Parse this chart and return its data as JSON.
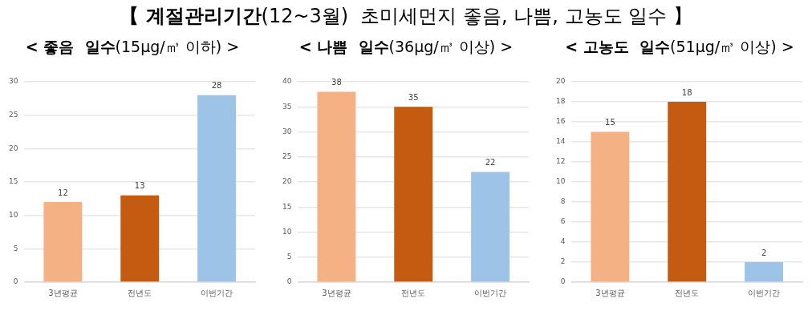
{
  "chart_data": [
    {
      "type": "other",
      "title": "【 계절관리기간(12~3월)  초미세먼지 좋음, 나쁨, 고농도 일수 】"
    },
    {
      "type": "bar",
      "title": "< 좋음  일수(15μg/㎥ 이하) >",
      "categories": [
        "3년평균",
        "전년도",
        "이번기간"
      ],
      "values": [
        12,
        13,
        28
      ],
      "colors": [
        "#f4b183",
        "#c55a11",
        "#9dc3e6"
      ],
      "ylim": [
        0,
        30
      ],
      "yticks": [
        0,
        5,
        10,
        15,
        20,
        25,
        30
      ],
      "grid": "y",
      "data_labels": true
    },
    {
      "type": "bar",
      "title": "< 나쁨  일수(36μg/㎥ 이상) >",
      "categories": [
        "3년평균",
        "전년도",
        "이번기간"
      ],
      "values": [
        38,
        35,
        22
      ],
      "colors": [
        "#f4b183",
        "#c55a11",
        "#9dc3e6"
      ],
      "ylim": [
        0,
        40
      ],
      "yticks": [
        0,
        5,
        10,
        15,
        20,
        25,
        30,
        35,
        40
      ],
      "grid": "y",
      "data_labels": true
    },
    {
      "type": "bar",
      "title": "< 고농도  일수(51μg/㎥ 이상) >",
      "categories": [
        "3년평균",
        "전년도",
        "이번기간"
      ],
      "values": [
        15,
        18,
        2
      ],
      "colors": [
        "#f4b183",
        "#c55a11",
        "#9dc3e6"
      ],
      "ylim": [
        0,
        20
      ],
      "yticks": [
        0,
        2,
        4,
        6,
        8,
        10,
        12,
        14,
        16,
        18,
        20
      ],
      "grid": "y",
      "data_labels": true
    }
  ]
}
